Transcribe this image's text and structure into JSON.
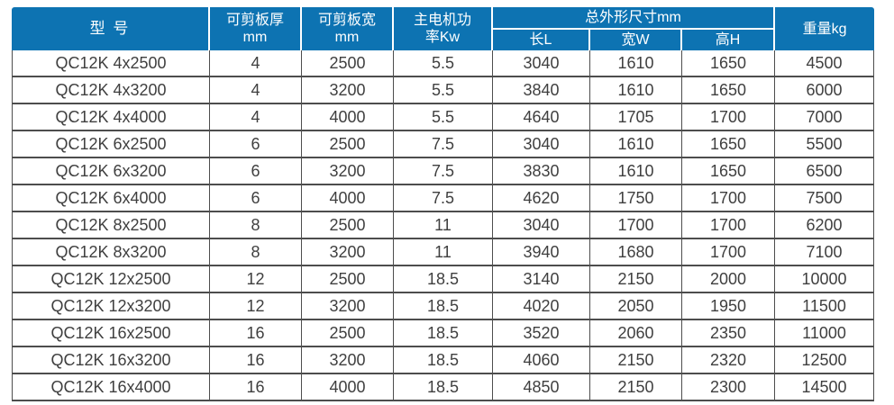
{
  "table": {
    "header": {
      "model": "型 号",
      "thickness": "可剪板厚\nmm",
      "sheet_width": "可剪板宽\nmm",
      "motor_power": "主电机功\n率Kw",
      "dimensions_group": "总外形尺寸mm",
      "length": "长L",
      "width": "宽W",
      "height": "高H",
      "weight": "重量kg"
    },
    "column_keys": [
      "model",
      "thickness",
      "sheet_width",
      "motor_power",
      "length",
      "width",
      "height",
      "weight"
    ],
    "rows": [
      {
        "model": "QC12K 4x2500",
        "thickness": "4",
        "sheet_width": "2500",
        "motor_power": "5.5",
        "length": "3040",
        "width": "1610",
        "height": "1650",
        "weight": "4500"
      },
      {
        "model": "QC12K 4x3200",
        "thickness": "4",
        "sheet_width": "3200",
        "motor_power": "5.5",
        "length": "3840",
        "width": "1610",
        "height": "1650",
        "weight": "6000"
      },
      {
        "model": "QC12K 4x4000",
        "thickness": "4",
        "sheet_width": "4000",
        "motor_power": "5.5",
        "length": "4640",
        "width": "1705",
        "height": "1700",
        "weight": "7000"
      },
      {
        "model": "QC12K 6x2500",
        "thickness": "6",
        "sheet_width": "2500",
        "motor_power": "7.5",
        "length": "3040",
        "width": "1610",
        "height": "1650",
        "weight": "5500"
      },
      {
        "model": "QC12K 6x3200",
        "thickness": "6",
        "sheet_width": "3200",
        "motor_power": "7.5",
        "length": "3830",
        "width": "1610",
        "height": "1650",
        "weight": "6500"
      },
      {
        "model": "QC12K 6x4000",
        "thickness": "6",
        "sheet_width": "4000",
        "motor_power": "7.5",
        "length": "4620",
        "width": "1750",
        "height": "1700",
        "weight": "7500"
      },
      {
        "model": "QC12K 8x2500",
        "thickness": "8",
        "sheet_width": "2500",
        "motor_power": "11",
        "length": "3040",
        "width": "1700",
        "height": "1700",
        "weight": "6200"
      },
      {
        "model": "QC12K 8x3200",
        "thickness": "8",
        "sheet_width": "3200",
        "motor_power": "11",
        "length": "3940",
        "width": "1680",
        "height": "1700",
        "weight": "7100"
      },
      {
        "model": "QC12K 12x2500",
        "thickness": "12",
        "sheet_width": "2500",
        "motor_power": "18.5",
        "length": "3140",
        "width": "2150",
        "height": "2000",
        "weight": "10000"
      },
      {
        "model": "QC12K 12x3200",
        "thickness": "12",
        "sheet_width": "3200",
        "motor_power": "18.5",
        "length": "4020",
        "width": "2050",
        "height": "1950",
        "weight": "11500"
      },
      {
        "model": "QC12K 16x2500",
        "thickness": "16",
        "sheet_width": "2500",
        "motor_power": "18.5",
        "length": "3520",
        "width": "2060",
        "height": "2350",
        "weight": "11000"
      },
      {
        "model": "QC12K 16x3200",
        "thickness": "16",
        "sheet_width": "3200",
        "motor_power": "18.5",
        "length": "4060",
        "width": "2150",
        "height": "2320",
        "weight": "12500"
      },
      {
        "model": "QC12K 16x4000",
        "thickness": "16",
        "sheet_width": "4000",
        "motor_power": "18.5",
        "length": "4850",
        "width": "2150",
        "height": "2300",
        "weight": "14500"
      }
    ]
  },
  "colors": {
    "header_bg": "#0d73b2",
    "header_text": "#ffffff",
    "body_text": "#3f3f3f",
    "border": "#4d4d4d",
    "page_bg": "#ffffff"
  }
}
